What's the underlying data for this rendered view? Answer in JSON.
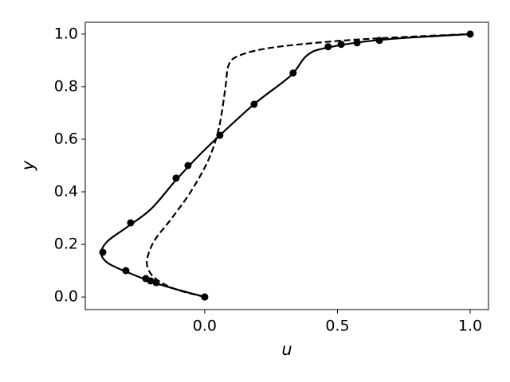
{
  "chart_data": {
    "type": "line",
    "xlabel": "u",
    "ylabel": "y",
    "xlim": [
      -0.45,
      1.069
    ],
    "ylim": [
      -0.048,
      1.045
    ],
    "xticks": [
      {
        "value": 0,
        "label": "0.0"
      },
      0.5,
      {
        "value": 1,
        "label": "1.0"
      }
    ],
    "yticks": [
      {
        "value": 0,
        "label": "0.0"
      },
      0.2,
      0.4,
      0.6,
      0.8,
      {
        "value": 1,
        "label": "1.0"
      }
    ],
    "grid": false,
    "series": [
      {
        "kind": "line",
        "style": "solid",
        "color": "#000000",
        "x": [
          0,
          -0.171,
          -0.291,
          -0.366,
          -0.39,
          -0.366,
          -0.291,
          -0.201,
          -0.108,
          -0.021,
          0.057,
          0.189,
          0.324,
          0.384,
          0.459,
          0.67,
          1
        ],
        "values": [
          0,
          0.048,
          0.094,
          0.13,
          0.167,
          0.212,
          0.267,
          0.336,
          0.445,
          0.539,
          0.615,
          0.736,
          0.842,
          0.918,
          0.948,
          0.979,
          1
        ]
      },
      {
        "kind": "line",
        "style": "dashed",
        "color": "#000000",
        "x": [
          0,
          -0.111,
          -0.186,
          -0.216,
          -0.213,
          -0.186,
          -0.126,
          -0.051,
          0.015,
          0.054,
          0.078,
          0.09,
          0.129,
          0.249,
          0.489,
          0.73,
          1
        ],
        "values": [
          0,
          0.03,
          0.07,
          0.115,
          0.16,
          0.22,
          0.297,
          0.403,
          0.524,
          0.645,
          0.797,
          0.882,
          0.918,
          0.948,
          0.973,
          0.988,
          1
        ]
      },
      {
        "kind": "scatter",
        "color": "#000000",
        "x": [
          0,
          -0.183,
          -0.204,
          -0.222,
          -0.297,
          -0.384,
          -0.279,
          -0.108,
          -0.063,
          0.057,
          0.186,
          0.333,
          0.465,
          0.514,
          0.574,
          0.658,
          1
        ],
        "values": [
          0,
          0.0545,
          0.061,
          0.07,
          0.1,
          0.17,
          0.282,
          0.452,
          0.5,
          0.615,
          0.733,
          0.852,
          0.952,
          0.961,
          0.967,
          0.976,
          1
        ]
      }
    ]
  }
}
